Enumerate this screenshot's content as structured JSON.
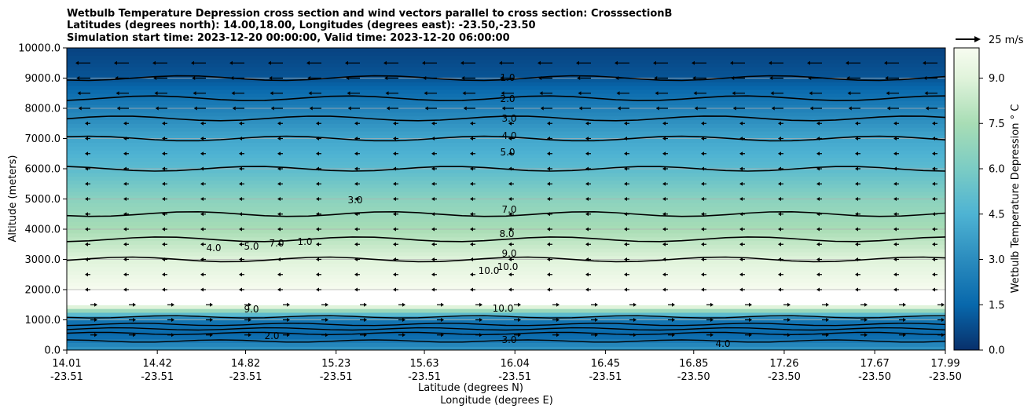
{
  "chart_data": {
    "type": "heatmap",
    "title_lines": [
      "Wetbulb Temperature Depression cross section and wind vectors parallel to cross section: CrosssectionB",
      "Latitudes (degrees north): 14.00,18.00, Longitudes (degrees east): -23.50,-23.50",
      "Simulation start time: 2023-12-20 00:00:00, Valid time: 2023-12-20 06:00:00"
    ],
    "xlabel": "Latitude (degrees N)",
    "xlabel2": "Longitude (degrees E)",
    "ylabel": "Altitude (meters)",
    "xlim": [
      14.01,
      17.99
    ],
    "ylim": [
      0,
      10000
    ],
    "x_ticks": [
      {
        "lat": "14.01",
        "lon": "-23.51",
        "value": 14.01
      },
      {
        "lat": "14.42",
        "lon": "-23.51",
        "value": 14.42
      },
      {
        "lat": "14.82",
        "lon": "-23.51",
        "value": 14.82
      },
      {
        "lat": "15.23",
        "lon": "-23.51",
        "value": 15.23
      },
      {
        "lat": "15.63",
        "lon": "-23.51",
        "value": 15.63
      },
      {
        "lat": "16.04",
        "lon": "-23.51",
        "value": 16.04
      },
      {
        "lat": "16.45",
        "lon": "-23.51",
        "value": 16.45
      },
      {
        "lat": "16.85",
        "lon": "-23.50",
        "value": 16.85
      },
      {
        "lat": "17.26",
        "lon": "-23.50",
        "value": 17.26
      },
      {
        "lat": "17.67",
        "lon": "-23.50",
        "value": 17.67
      },
      {
        "lat": "17.99",
        "lon": "-23.50",
        "value": 17.99
      }
    ],
    "y_ticks": [
      "0.0",
      "1000.0",
      "2000.0",
      "3000.0",
      "4000.0",
      "5000.0",
      "6000.0",
      "7000.0",
      "8000.0",
      "9000.0",
      "10000.0"
    ],
    "grid": "horizontal",
    "colorbar": {
      "label": "Wetbulb Temperature Depression ° C",
      "range": [
        0,
        10
      ],
      "ticks": [
        "0.0",
        "1.5",
        "3.0",
        "4.5",
        "6.0",
        "7.5",
        "9.0"
      ],
      "colormap": "GnBu (reversed)"
    },
    "quiver_key": "25 m/s",
    "contour_labels": [
      "1.0",
      "2.0",
      "3.0",
      "4.0",
      "5.0",
      "7.0",
      "8.0",
      "9.0",
      "10.0",
      "10.0",
      "10.0",
      "9.0",
      "3.0",
      "4.0",
      "2.0",
      "3.0",
      "4.0",
      "5.0",
      "7.0",
      "1.0"
    ],
    "profile": [
      {
        "alt": 0,
        "value": 3.5
      },
      {
        "alt": 500,
        "value": 1.5
      },
      {
        "alt": 1000,
        "value": 2.0
      },
      {
        "alt": 1500,
        "value": 10.0
      },
      {
        "alt": 2000,
        "value": 10.0
      },
      {
        "alt": 2500,
        "value": 9.5
      },
      {
        "alt": 3000,
        "value": 9.0
      },
      {
        "alt": 4000,
        "value": 7.5
      },
      {
        "alt": 5000,
        "value": 6.5
      },
      {
        "alt": 6000,
        "value": 5.0
      },
      {
        "alt": 7000,
        "value": 4.0
      },
      {
        "alt": 8000,
        "value": 2.5
      },
      {
        "alt": 9000,
        "value": 1.0
      },
      {
        "alt": 10000,
        "value": 0.5
      }
    ]
  }
}
